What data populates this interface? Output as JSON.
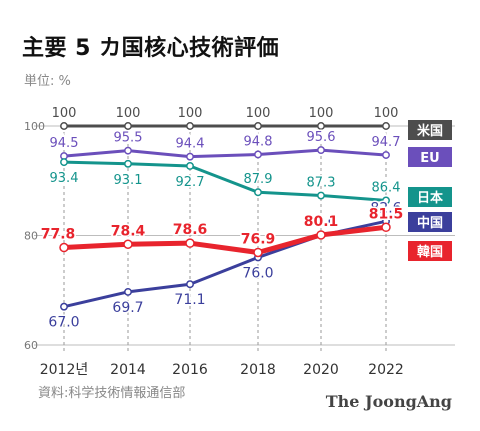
{
  "header": {
    "title": "主要 5 カ国核心技術評価",
    "unit": "単位: %"
  },
  "footer": {
    "source": "資料:科学技術情報通信部",
    "brand": "The JoongAng"
  },
  "colors": {
    "米国": "#4d4d4d",
    "EU": "#6b4fbb",
    "日本": "#14948c",
    "中国": "#3b3f9c",
    "韓国": "#e8242d"
  },
  "chart_data": {
    "type": "line",
    "title": "主要 5 カ国核心技術評価",
    "x": [
      2012,
      2014,
      2016,
      2018,
      2020,
      2022
    ],
    "x_tick_labels": [
      "2012년",
      "2014",
      "2016",
      "2018",
      "2020",
      "2022"
    ],
    "y_ticks": [
      60,
      80,
      100
    ],
    "ylim": [
      60,
      100
    ],
    "legend": "right",
    "series": [
      {
        "name": "米国",
        "values": [
          100,
          100,
          100,
          100,
          100,
          100
        ],
        "labels": [
          "100",
          "100",
          "100",
          "100",
          "100",
          "100"
        ]
      },
      {
        "name": "EU",
        "values": [
          94.5,
          95.5,
          94.4,
          94.8,
          95.6,
          94.7
        ],
        "labels": [
          "94.5",
          "95.5",
          "94.4",
          "94.8",
          "95.6",
          "94.7"
        ]
      },
      {
        "name": "日本",
        "values": [
          93.4,
          93.1,
          92.7,
          87.9,
          87.3,
          86.4
        ],
        "labels": [
          "93.4",
          "93.1",
          "92.7",
          "87.9",
          "87.3",
          "86.4"
        ]
      },
      {
        "name": "中国",
        "values": [
          67.0,
          69.7,
          71.1,
          76.0,
          80.0,
          82.6
        ],
        "labels": [
          "67.0",
          "69.7",
          "71.1",
          "76.0",
          "80.0",
          "82.6"
        ]
      },
      {
        "name": "韓国",
        "values": [
          77.8,
          78.4,
          78.6,
          76.9,
          80.1,
          81.5
        ],
        "labels": [
          "77.8",
          "78.4",
          "78.6",
          "76.9",
          "80.1",
          "81.5"
        ]
      }
    ]
  }
}
